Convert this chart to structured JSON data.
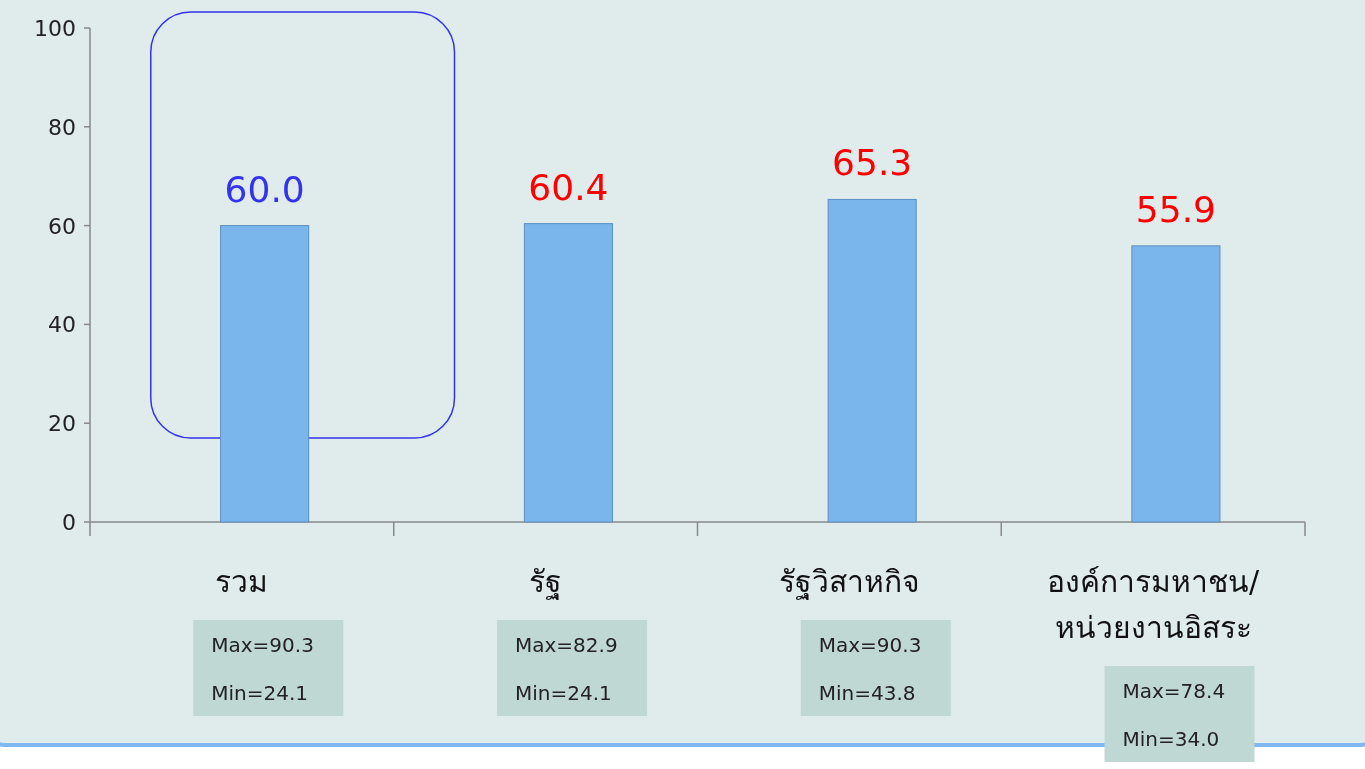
{
  "chart_data": {
    "type": "bar",
    "categories": [
      "รวม",
      "รัฐ",
      "รัฐวิสาหกิจ",
      "องค์การมหาชน/หน่วยงานอิสระ"
    ],
    "values": [
      60.0,
      60.4,
      65.3,
      55.9
    ],
    "color": "#7ab6ec",
    "ylim": [
      0,
      100
    ],
    "yticks": [
      0,
      20,
      40,
      60,
      80,
      100
    ],
    "value_labels": [
      "60.0",
      "60.4",
      "65.3",
      "55.9"
    ],
    "grid": false,
    "annotations": [
      "Max=90.3",
      "Min=24.1",
      "Max=82.9",
      "Min=24.1",
      "Max=90.3",
      "Min=43.8",
      "Max=78.4",
      "Min=34.0"
    ]
  }
}
